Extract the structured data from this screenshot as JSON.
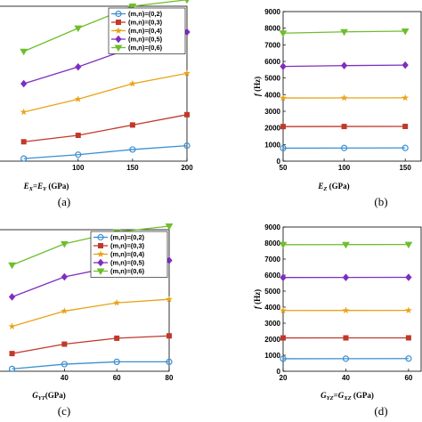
{
  "series_styles": [
    {
      "name": "(m,n)=(0,2)",
      "color": "#3b8fd1",
      "marker": "circle"
    },
    {
      "name": "(m,n)=(0,3)",
      "color": "#c0392b",
      "marker": "square"
    },
    {
      "name": "(m,n)=(0,4)",
      "color": "#e8a317",
      "marker": "star"
    },
    {
      "name": "(m,n)=(0,5)",
      "color": "#7e2fbf",
      "marker": "diamond"
    },
    {
      "name": "(m,n)=(0,6)",
      "color": "#6fbe2c",
      "marker": "triangle-down"
    }
  ],
  "chart_data": [
    {
      "type": "line",
      "panel_label": "(a)",
      "xlabel": "E_X=E_Y (GPa)",
      "xlabel_parts": {
        "base1": "E",
        "sub1": "X",
        "mid": "=",
        "base2": "E",
        "sub2": "Y",
        "unit": " (GPa)"
      },
      "ylabel": "",
      "x": [
        50,
        100,
        150,
        200
      ],
      "xticks": [
        "100",
        "150",
        "200"
      ],
      "xtick_values": [
        100,
        150,
        200
      ],
      "ylim": [
        0,
        12
      ],
      "legend": "top-right",
      "series": [
        {
          "name": "(m,n)=(0,2)",
          "values": [
            0.2,
            0.5,
            0.9,
            1.2
          ]
        },
        {
          "name": "(m,n)=(0,3)",
          "values": [
            1.5,
            2.0,
            2.8,
            3.6
          ]
        },
        {
          "name": "(m,n)=(0,4)",
          "values": [
            3.8,
            4.8,
            6.0,
            6.8
          ]
        },
        {
          "name": "(m,n)=(0,5)",
          "values": [
            6.0,
            7.3,
            8.8,
            10.0
          ]
        },
        {
          "name": "(m,n)=(0,6)",
          "values": [
            8.5,
            10.3,
            12.0,
            12.5
          ]
        }
      ]
    },
    {
      "type": "line",
      "panel_label": "(b)",
      "xlabel": "E_Z (GPa)",
      "xlabel_parts": {
        "base1": "E",
        "sub1": "Z",
        "unit": " (GPa)"
      },
      "ylabel": "f (Hz)",
      "x": [
        50,
        100,
        150
      ],
      "xticks": [
        "50",
        "100",
        "150"
      ],
      "ylim": [
        0,
        9000
      ],
      "yticks": [
        "0",
        "1000",
        "2000",
        "3000",
        "4000",
        "5000",
        "6000",
        "7000",
        "8000",
        "9000"
      ],
      "series": [
        {
          "name": "(m,n)=(0,2)",
          "values": [
            780,
            790,
            795
          ]
        },
        {
          "name": "(m,n)=(0,3)",
          "values": [
            2080,
            2085,
            2090
          ]
        },
        {
          "name": "(m,n)=(0,4)",
          "values": [
            3800,
            3805,
            3810
          ]
        },
        {
          "name": "(m,n)=(0,5)",
          "values": [
            5700,
            5750,
            5780
          ]
        },
        {
          "name": "(m,n)=(0,6)",
          "values": [
            7700,
            7780,
            7820
          ]
        }
      ]
    },
    {
      "type": "line",
      "panel_label": "(c)",
      "xlabel": "G_YT (GPa)",
      "xlabel_parts": {
        "base1": "G",
        "sub1": "YT",
        "unit": "(GPa)"
      },
      "ylabel": "",
      "x": [
        20,
        40,
        60,
        80
      ],
      "xticks": [
        "40",
        "60",
        "80"
      ],
      "xtick_values": [
        40,
        60,
        80
      ],
      "ylim": [
        0,
        12
      ],
      "legend": "top-right",
      "series": [
        {
          "name": "(m,n)=(0,2)",
          "values": [
            0.2,
            0.6,
            0.8,
            0.8
          ]
        },
        {
          "name": "(m,n)=(0,3)",
          "values": [
            1.5,
            2.3,
            2.8,
            3.0
          ]
        },
        {
          "name": "(m,n)=(0,4)",
          "values": [
            3.8,
            5.1,
            5.8,
            6.1
          ]
        },
        {
          "name": "(m,n)=(0,5)",
          "values": [
            6.3,
            8.0,
            8.9,
            9.4
          ]
        },
        {
          "name": "(m,n)=(0,6)",
          "values": [
            9.0,
            10.8,
            11.8,
            12.3
          ]
        }
      ]
    },
    {
      "type": "line",
      "panel_label": "(d)",
      "xlabel": "G_YZ=G_XZ (GPa)",
      "xlabel_parts": {
        "base1": "G",
        "sub1": "YZ",
        "mid": "=",
        "base2": "G",
        "sub2": "XZ",
        "unit": " (GPa)"
      },
      "ylabel": "f (Hz)",
      "x": [
        20,
        40,
        60
      ],
      "xticks": [
        "20",
        "40",
        "60"
      ],
      "ylim": [
        0,
        9000
      ],
      "yticks": [
        "0",
        "1000",
        "2000",
        "3000",
        "4000",
        "5000",
        "6000",
        "7000",
        "8000",
        "9000"
      ],
      "series": [
        {
          "name": "(m,n)=(0,2)",
          "values": [
            780,
            785,
            790
          ]
        },
        {
          "name": "(m,n)=(0,3)",
          "values": [
            2080,
            2082,
            2085
          ]
        },
        {
          "name": "(m,n)=(0,4)",
          "values": [
            3790,
            3795,
            3800
          ]
        },
        {
          "name": "(m,n)=(0,5)",
          "values": [
            5850,
            5855,
            5860
          ]
        },
        {
          "name": "(m,n)=(0,6)",
          "values": [
            7900,
            7905,
            7910
          ]
        }
      ]
    }
  ]
}
